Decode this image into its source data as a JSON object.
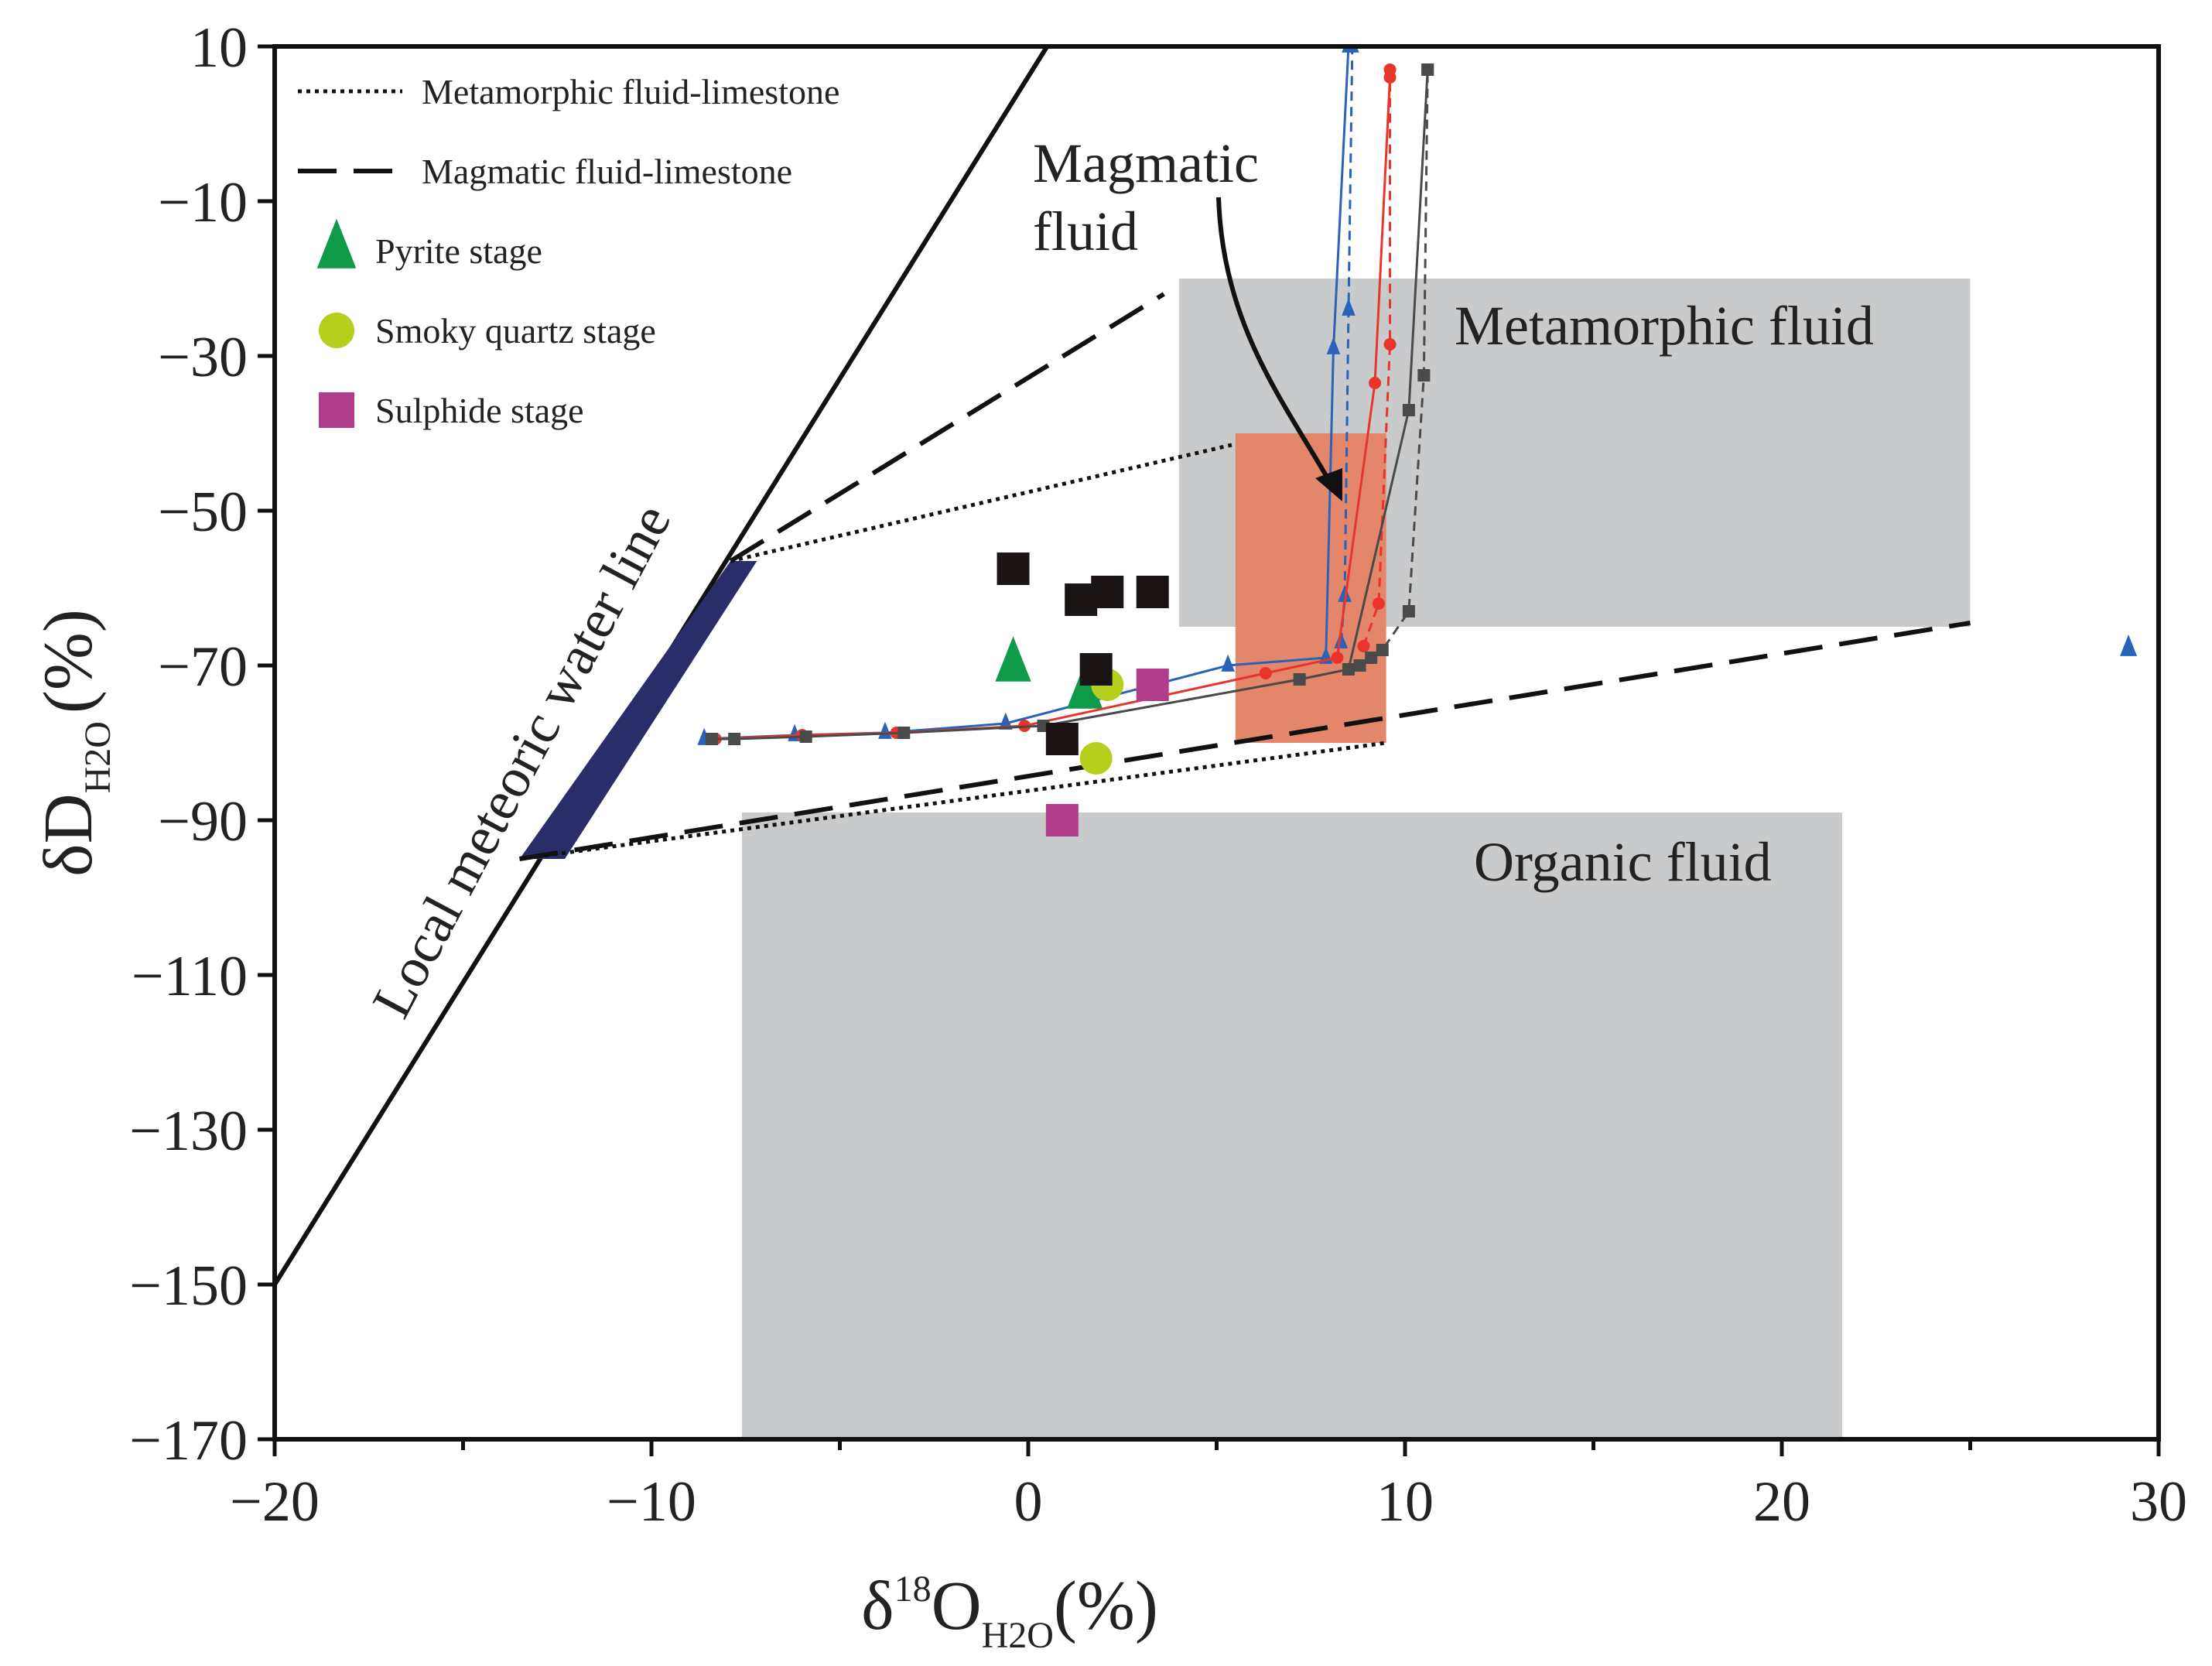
{
  "chart_data": {
    "type": "scatter",
    "title": "",
    "xlabel": {
      "base": "δ",
      "sup": "18",
      "main": "O",
      "sub": "H2O",
      "unit": "(%)"
    },
    "ylabel": {
      "base": "δD",
      "sub": "H2O",
      "unit": "(%)"
    },
    "xlim": [
      -20,
      30
    ],
    "ylim": [
      -170,
      10
    ],
    "x_ticks": [
      -20,
      -10,
      0,
      10,
      20,
      30
    ],
    "y_ticks": [
      10,
      -10,
      -30,
      -50,
      -70,
      -90,
      -110,
      -130,
      -150,
      -170
    ],
    "x_tick_labels": [
      "−20",
      "−10",
      "0",
      "10",
      "20",
      "30"
    ],
    "y_tick_labels": [
      "10",
      "−10",
      "−30",
      "−50",
      "−70",
      "−90",
      "−110",
      "−130",
      "−150",
      "−170"
    ],
    "legend": [
      {
        "label": "Metamorphic fluid-limestone",
        "style": "dotted-line"
      },
      {
        "label": "Magmatic fluid-limestone",
        "style": "dashed-line"
      },
      {
        "label": "Pyrite stage",
        "marker": "triangle",
        "color": "#0f9a4a"
      },
      {
        "label": "Smoky quartz stage",
        "marker": "circle",
        "color": "#b5cf1c"
      },
      {
        "label": "Sulphide stage",
        "marker": "square",
        "color": "#b03c8c"
      }
    ],
    "regions": [
      {
        "name": "Metamorphic fluid",
        "label": "Metamorphic fluid",
        "x": [
          4,
          25
        ],
        "y": [
          -65,
          -20
        ],
        "color": "#c9cacb"
      },
      {
        "name": "Organic fluid",
        "label": "Organic fluid",
        "x": [
          -7.6,
          21.6
        ],
        "y": [
          -170,
          -89
        ],
        "color": "#c9cacb"
      },
      {
        "name": "Magmatic fluid",
        "label": "Magmatic\nfluid",
        "x": [
          5.5,
          9.5
        ],
        "y": [
          -80,
          -40
        ],
        "color": "#e3866a"
      }
    ],
    "meteoric_line": {
      "label": "Local meteoric water line",
      "from": [
        -20,
        -150
      ],
      "to": [
        0.5,
        10
      ]
    },
    "meteoric_band": [
      [
        -13.5,
        -95
      ],
      [
        -12.3,
        -95
      ],
      [
        -7.2,
        -56.5
      ],
      [
        -7.9,
        -56.5
      ]
    ],
    "mixing_lines": {
      "magmatic_dashed": [
        {
          "from": [
            -7.9,
            -56.5
          ],
          "to": [
            3.6,
            -22
          ]
        },
        {
          "from": [
            -13.5,
            -95
          ],
          "to": [
            25,
            -64.5
          ]
        }
      ],
      "metamorphic_dotted": [
        {
          "from": [
            -7.9,
            -56.5
          ],
          "to": [
            5.4,
            -41.5
          ]
        },
        {
          "from": [
            -13.5,
            -95
          ],
          "to": [
            9.5,
            -80
          ]
        }
      ]
    },
    "series": [
      {
        "name": "Pyrite stage",
        "marker": "triangle",
        "color": "#0f9a4a",
        "x": [
          -0.4,
          1.5
        ],
        "y": [
          -70,
          -73.5
        ]
      },
      {
        "name": "Smoky quartz stage",
        "marker": "circle",
        "color": "#b5cf1c",
        "x": [
          2.1,
          1.8
        ],
        "y": [
          -72.5,
          -82
        ]
      },
      {
        "name": "Sulphide stage",
        "marker": "square",
        "color": "#b03c8c",
        "x": [
          3.3,
          0.9
        ],
        "y": [
          -72.5,
          -90
        ]
      },
      {
        "name": "Black squares",
        "marker": "square",
        "color": "#1a1414",
        "x": [
          -0.4,
          1.4,
          2.1,
          3.3,
          1.8,
          0.9
        ],
        "y": [
          -57.5,
          -61.5,
          -60.5,
          -60.5,
          -70.5,
          -79.5
        ]
      }
    ],
    "curves": [
      {
        "name": "blue-solid",
        "color": "#2a62b8",
        "dash": "solid",
        "marker": "triangle",
        "x": [
          -8.6,
          -6.2,
          -3.8,
          -0.6,
          5.3,
          7.9,
          8.1,
          8.5
        ],
        "y": [
          -79.5,
          -79,
          -78.7,
          -77.5,
          -70,
          -69,
          -29,
          10
        ]
      },
      {
        "name": "blue-dashed",
        "color": "#2a62b8",
        "dash": "dashed",
        "marker": "triangle",
        "x": [
          8.3,
          8.4,
          8.5,
          8.6
        ],
        "y": [
          -67,
          -61,
          -24,
          10
        ]
      },
      {
        "name": "red-solid",
        "color": "#e8342b",
        "dash": "solid",
        "marker": "circle",
        "x": [
          -8.3,
          -6,
          -3.5,
          -0.1,
          6.3,
          8.2,
          9.2,
          9.6
        ],
        "y": [
          -79.5,
          -79,
          -78.7,
          -77.8,
          -71,
          -69,
          -33.5,
          6
        ]
      },
      {
        "name": "red-dashed",
        "color": "#e8342b",
        "dash": "dashed",
        "marker": "circle",
        "x": [
          8.9,
          9.3,
          9.6,
          9.6
        ],
        "y": [
          -67.5,
          -62,
          -28.5,
          7
        ]
      },
      {
        "name": "black-solid",
        "color": "#4a4a4a",
        "dash": "solid",
        "marker": "square",
        "x": [
          -8.4,
          -7.8,
          -5.9,
          -3.3,
          0.4,
          7.2,
          8.5,
          10.1,
          10.6
        ],
        "y": [
          -79.5,
          -79.5,
          -79.2,
          -78.7,
          -77.8,
          -71.8,
          -70.5,
          -37,
          7
        ]
      },
      {
        "name": "black-dashed",
        "color": "#4a4a4a",
        "dash": "dashed",
        "marker": "square",
        "x": [
          8.8,
          9.1,
          9.4,
          10.1,
          10.5,
          10.6
        ],
        "y": [
          -70,
          -69,
          -68,
          -63,
          -32.5,
          7
        ]
      }
    ],
    "outlier": {
      "marker": "triangle",
      "color": "#2a62b8",
      "x": 29.2,
      "y": -67.8
    }
  }
}
